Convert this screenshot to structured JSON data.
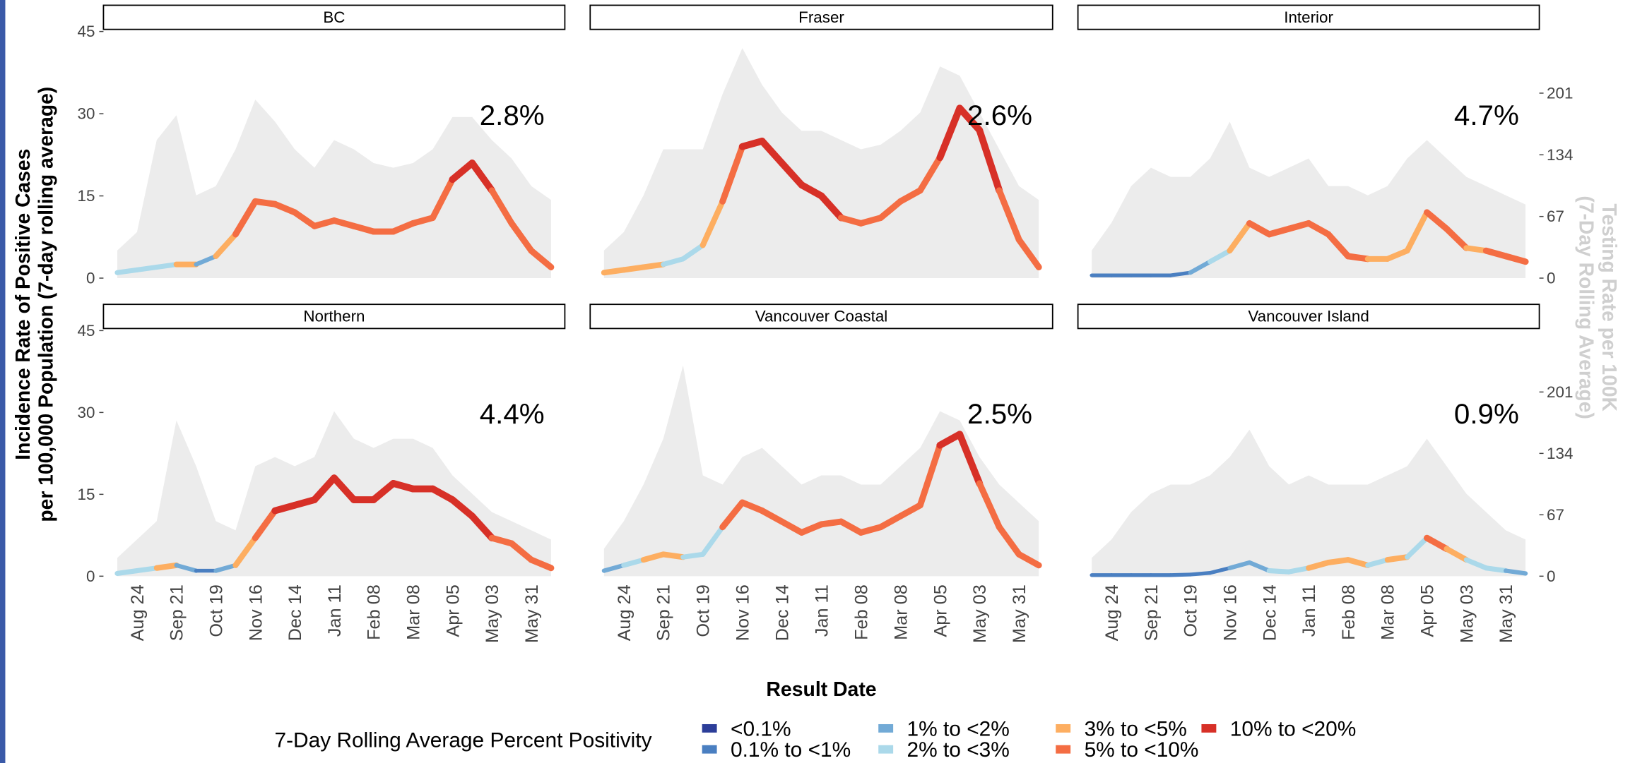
{
  "chart_data": {
    "type": "line",
    "x_label": "Result Date",
    "y_label": [
      "Incidence Rate of Positive Cases",
      "per 100,000 Population (7-day rolling average)"
    ],
    "y2_label": [
      "Testing Rate per 100K",
      "(7-Day Rolling Average)"
    ],
    "legend_title": "7-Day Rolling Average Percent Positivity",
    "legend": [
      {
        "name": "<0.1%",
        "color": "#2c3e99"
      },
      {
        "name": "0.1% to <1%",
        "color": "#4a7fc1"
      },
      {
        "name": "1% to <2%",
        "color": "#72aad6"
      },
      {
        "name": "2% to <3%",
        "color": "#abd9ea"
      },
      {
        "name": "3% to <5%",
        "color": "#fdae61"
      },
      {
        "name": "5% to <10%",
        "color": "#f46d43"
      },
      {
        "name": "10% to <20%",
        "color": "#d73027"
      }
    ],
    "area_color": "#ececec",
    "categories": [
      null,
      "Aug 24",
      null,
      "Sep 21",
      null,
      "Oct 19",
      null,
      "Nov 16",
      null,
      "Dec 14",
      null,
      "Jan 11",
      null,
      "Feb 08",
      null,
      "Mar 08",
      null,
      "Apr 05",
      null,
      "May 03",
      null,
      "May 31",
      null
    ],
    "ylim": [
      0,
      45
    ],
    "yticks": [
      0,
      15,
      30,
      45
    ],
    "y2lim": [
      0,
      268
    ],
    "y2ticks": [
      0,
      67,
      134,
      201
    ],
    "panels": [
      {
        "title": "BC",
        "annotation": "2.8%",
        "values": [
          1,
          1.5,
          2,
          2.5,
          2.5,
          4,
          8,
          14,
          13.5,
          12,
          9.5,
          10.5,
          9.5,
          8.5,
          8.5,
          10,
          11,
          18,
          21,
          16,
          10,
          5,
          2
        ],
        "positivity": [
          3,
          3,
          3,
          4,
          2,
          4,
          5,
          5,
          5,
          5,
          5,
          5,
          5,
          5,
          5,
          5,
          5,
          6,
          6,
          5,
          5,
          5,
          4
        ],
        "testing": [
          30,
          50,
          150,
          177,
          90,
          100,
          140,
          194,
          170,
          140,
          120,
          150,
          140,
          125,
          120,
          125,
          140,
          175,
          175,
          150,
          130,
          100,
          85
        ]
      },
      {
        "title": "Fraser",
        "annotation": "2.6%",
        "values": [
          1,
          1.5,
          2,
          2.5,
          3.5,
          6,
          14,
          24,
          25,
          21,
          17,
          15,
          11,
          10,
          11,
          14,
          16,
          22,
          31,
          27,
          16,
          7,
          2
        ],
        "positivity": [
          4,
          4,
          4,
          3,
          3,
          4,
          5,
          6,
          6,
          6,
          6,
          6,
          5,
          5,
          5,
          5,
          5,
          6,
          6,
          6,
          5,
          5,
          4
        ],
        "testing": [
          30,
          50,
          90,
          140,
          140,
          140,
          200,
          250,
          210,
          180,
          160,
          160,
          150,
          140,
          145,
          160,
          180,
          230,
          220,
          180,
          140,
          100,
          85
        ]
      },
      {
        "title": "Interior",
        "annotation": "4.7%",
        "values": [
          0.5,
          0.5,
          0.5,
          0.5,
          0.5,
          1,
          3,
          5,
          10,
          8,
          9,
          10,
          8,
          4,
          3.5,
          3.5,
          5,
          12,
          9,
          5.5,
          5,
          4,
          3
        ],
        "positivity": [
          1,
          1,
          1,
          1,
          1,
          2,
          3,
          4,
          5,
          5,
          5,
          5,
          5,
          5,
          4,
          4,
          4,
          5,
          5,
          4,
          5,
          5,
          5
        ],
        "testing": [
          30,
          60,
          100,
          120,
          110,
          110,
          130,
          170,
          120,
          110,
          120,
          130,
          100,
          100,
          90,
          100,
          130,
          150,
          130,
          110,
          100,
          90,
          80
        ]
      },
      {
        "title": "Northern",
        "annotation": "4.4%",
        "values": [
          0.5,
          1,
          1.5,
          2,
          1,
          1,
          2,
          7,
          12,
          13,
          14,
          18,
          14,
          14,
          17,
          16,
          16,
          14,
          11,
          7,
          6,
          3,
          1.5
        ],
        "positivity": [
          3,
          3,
          4,
          2,
          1,
          2,
          4,
          5,
          6,
          6,
          6,
          6,
          6,
          6,
          6,
          6,
          6,
          6,
          6,
          5,
          5,
          5,
          5
        ],
        "testing": [
          20,
          40,
          60,
          170,
          120,
          60,
          50,
          120,
          130,
          120,
          130,
          180,
          150,
          140,
          150,
          150,
          140,
          110,
          90,
          70,
          60,
          50,
          40
        ]
      },
      {
        "title": "Vancouver Coastal",
        "annotation": "2.5%",
        "values": [
          1,
          2,
          3,
          4,
          3.5,
          4,
          9,
          13.5,
          12,
          10,
          8,
          9.5,
          10,
          8,
          9,
          11,
          13,
          24,
          26,
          17,
          9,
          4,
          2
        ],
        "positivity": [
          2,
          3,
          4,
          4,
          3,
          3,
          5,
          5,
          5,
          5,
          5,
          5,
          5,
          5,
          5,
          5,
          5,
          6,
          6,
          5,
          5,
          5,
          3
        ],
        "testing": [
          30,
          60,
          100,
          150,
          230,
          110,
          100,
          130,
          140,
          120,
          100,
          110,
          110,
          100,
          100,
          120,
          140,
          180,
          170,
          130,
          100,
          80,
          60
        ]
      },
      {
        "title": "Vancouver Island",
        "annotation": "0.9%",
        "values": [
          0.2,
          0.2,
          0.2,
          0.2,
          0.2,
          0.3,
          0.6,
          1.5,
          2.5,
          1,
          0.8,
          1.5,
          2.5,
          3,
          2,
          3,
          3.5,
          7,
          5,
          3,
          1.5,
          1,
          0.5
        ],
        "positivity": [
          1,
          1,
          1,
          1,
          1,
          1,
          1,
          2,
          2,
          3,
          3,
          4,
          4,
          4,
          3,
          4,
          3,
          5,
          4,
          3,
          3,
          2,
          2
        ],
        "testing": [
          20,
          40,
          70,
          90,
          100,
          100,
          110,
          130,
          160,
          120,
          100,
          110,
          100,
          100,
          100,
          110,
          120,
          150,
          120,
          90,
          70,
          50,
          40
        ]
      }
    ]
  }
}
